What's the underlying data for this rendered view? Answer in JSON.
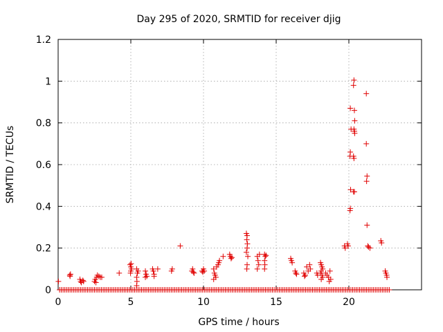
{
  "chart_data": {
    "type": "scatter",
    "title": "Day 295 of 2020, SRMTID for receiver djig",
    "xlabel": "GPS time / hours",
    "ylabel": "SRMTID / TECUs",
    "xlim": [
      0,
      25
    ],
    "ylim": [
      0,
      1.2
    ],
    "xticks": [
      0,
      5,
      10,
      15,
      20
    ],
    "xtick_labels": [
      "0",
      "5",
      "10",
      "15",
      "20"
    ],
    "yticks": [
      0,
      0.2,
      0.4,
      0.6,
      0.8,
      1,
      1.2
    ],
    "ytick_labels": [
      "0",
      "0.2",
      "0.4",
      "0.6",
      "0.8",
      "1",
      "1.2"
    ],
    "grid": true,
    "marker": "+",
    "color": "#e00000",
    "series": [
      {
        "name": "SRMTID",
        "points": [
          [
            0.02,
            0.04
          ],
          [
            0.8,
            0.07
          ],
          [
            0.85,
            0.075
          ],
          [
            0.82,
            0.065
          ],
          [
            1.5,
            0.05
          ],
          [
            1.55,
            0.04
          ],
          [
            1.6,
            0.035
          ],
          [
            1.75,
            0.04
          ],
          [
            1.7,
            0.045
          ],
          [
            2.5,
            0.04
          ],
          [
            2.55,
            0.05
          ],
          [
            2.6,
            0.035
          ],
          [
            2.65,
            0.06
          ],
          [
            2.7,
            0.07
          ],
          [
            2.8,
            0.065
          ],
          [
            2.9,
            0.06
          ],
          [
            3.0,
            0.06
          ],
          [
            4.2,
            0.08
          ],
          [
            4.95,
            0.12
          ],
          [
            5.0,
            0.11
          ],
          [
            5.05,
            0.1
          ],
          [
            5.0,
            0.09
          ],
          [
            4.98,
            0.08
          ],
          [
            5.02,
            0.125
          ],
          [
            5.4,
            0.1
          ],
          [
            5.45,
            0.08
          ],
          [
            5.4,
            0.06
          ],
          [
            5.42,
            0.04
          ],
          [
            5.4,
            0.02
          ],
          [
            5.5,
            0.09
          ],
          [
            6.0,
            0.09
          ],
          [
            6.05,
            0.075
          ],
          [
            6.1,
            0.065
          ],
          [
            6.0,
            0.06
          ],
          [
            6.5,
            0.1
          ],
          [
            6.55,
            0.09
          ],
          [
            6.6,
            0.075
          ],
          [
            6.6,
            0.065
          ],
          [
            6.85,
            0.1
          ],
          [
            7.8,
            0.09
          ],
          [
            7.85,
            0.1
          ],
          [
            8.4,
            0.21
          ],
          [
            9.2,
            0.09
          ],
          [
            9.25,
            0.1
          ],
          [
            9.3,
            0.085
          ],
          [
            9.35,
            0.08
          ],
          [
            9.9,
            0.09
          ],
          [
            9.95,
            0.085
          ],
          [
            10.0,
            0.1
          ],
          [
            10.05,
            0.09
          ],
          [
            10.7,
            0.1
          ],
          [
            10.75,
            0.08
          ],
          [
            10.8,
            0.07
          ],
          [
            10.85,
            0.06
          ],
          [
            10.7,
            0.05
          ],
          [
            10.9,
            0.11
          ],
          [
            11.0,
            0.12
          ],
          [
            11.05,
            0.13
          ],
          [
            11.1,
            0.14
          ],
          [
            11.35,
            0.16
          ],
          [
            11.8,
            0.17
          ],
          [
            11.85,
            0.16
          ],
          [
            11.9,
            0.15
          ],
          [
            11.95,
            0.155
          ],
          [
            12.95,
            0.27
          ],
          [
            13.0,
            0.26
          ],
          [
            12.98,
            0.24
          ],
          [
            13.02,
            0.22
          ],
          [
            13.0,
            0.2
          ],
          [
            12.95,
            0.18
          ],
          [
            13.05,
            0.16
          ],
          [
            13.0,
            0.12
          ],
          [
            12.98,
            0.1
          ],
          [
            13.7,
            0.16
          ],
          [
            13.75,
            0.14
          ],
          [
            13.8,
            0.12
          ],
          [
            13.7,
            0.1
          ],
          [
            13.85,
            0.17
          ],
          [
            14.2,
            0.17
          ],
          [
            14.25,
            0.16
          ],
          [
            14.2,
            0.14
          ],
          [
            14.22,
            0.12
          ],
          [
            14.2,
            0.1
          ],
          [
            14.3,
            0.165
          ],
          [
            16.0,
            0.15
          ],
          [
            16.05,
            0.14
          ],
          [
            16.1,
            0.13
          ],
          [
            16.3,
            0.09
          ],
          [
            16.35,
            0.08
          ],
          [
            16.4,
            0.075
          ],
          [
            16.9,
            0.08
          ],
          [
            16.95,
            0.065
          ],
          [
            17.0,
            0.07
          ],
          [
            17.1,
            0.11
          ],
          [
            17.2,
            0.09
          ],
          [
            17.3,
            0.12
          ],
          [
            17.35,
            0.1
          ],
          [
            17.8,
            0.08
          ],
          [
            17.85,
            0.07
          ],
          [
            18.05,
            0.13
          ],
          [
            18.1,
            0.12
          ],
          [
            18.15,
            0.11
          ],
          [
            18.2,
            0.1
          ],
          [
            18.1,
            0.09
          ],
          [
            18.05,
            0.08
          ],
          [
            18.15,
            0.07
          ],
          [
            18.2,
            0.06
          ],
          [
            18.1,
            0.05
          ],
          [
            18.4,
            0.08
          ],
          [
            18.5,
            0.07
          ],
          [
            18.6,
            0.06
          ],
          [
            18.7,
            0.09
          ],
          [
            18.75,
            0.05
          ],
          [
            18.65,
            0.04
          ],
          [
            19.7,
            0.21
          ],
          [
            19.75,
            0.2
          ],
          [
            19.9,
            0.22
          ],
          [
            19.95,
            0.21
          ],
          [
            20.1,
            0.87
          ],
          [
            20.15,
            0.77
          ],
          [
            20.1,
            0.66
          ],
          [
            20.08,
            0.64
          ],
          [
            20.12,
            0.48
          ],
          [
            20.1,
            0.39
          ],
          [
            20.08,
            0.38
          ],
          [
            20.35,
            1.005
          ],
          [
            20.32,
            0.98
          ],
          [
            20.38,
            0.86
          ],
          [
            20.4,
            0.81
          ],
          [
            20.35,
            0.77
          ],
          [
            20.38,
            0.76
          ],
          [
            20.4,
            0.75
          ],
          [
            20.32,
            0.64
          ],
          [
            20.35,
            0.63
          ],
          [
            20.38,
            0.47
          ],
          [
            20.32,
            0.47
          ],
          [
            21.2,
            0.94
          ],
          [
            21.2,
            0.7
          ],
          [
            21.25,
            0.545
          ],
          [
            21.22,
            0.52
          ],
          [
            21.25,
            0.31
          ],
          [
            21.3,
            0.21
          ],
          [
            21.35,
            0.205
          ],
          [
            21.45,
            0.2
          ],
          [
            22.2,
            0.235
          ],
          [
            22.25,
            0.225
          ],
          [
            22.5,
            0.09
          ],
          [
            22.55,
            0.08
          ],
          [
            22.6,
            0.07
          ],
          [
            22.62,
            0.06
          ]
        ],
        "baseline": {
          "y": 0,
          "x_start": 0.1,
          "x_end": 22.8,
          "step": 0.12
        }
      }
    ]
  }
}
